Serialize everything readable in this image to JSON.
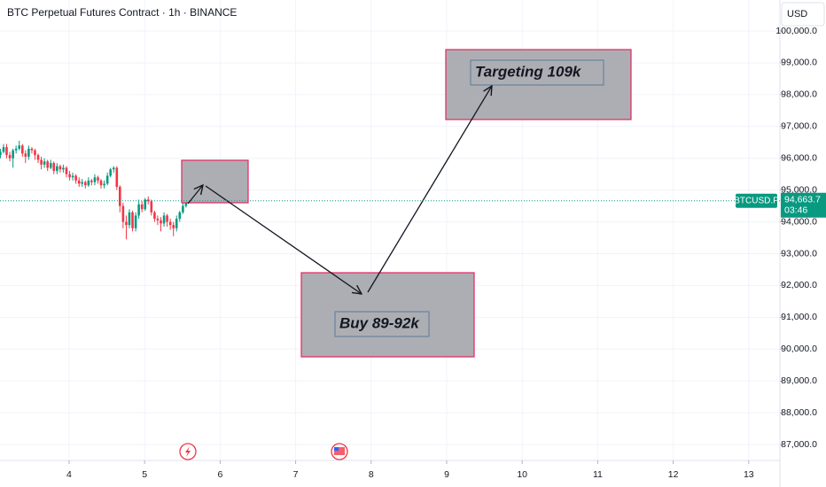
{
  "chart_data": {
    "type": "candlestick",
    "title": "BTC Perpetual Futures Contract · 1h · BINANCE",
    "currency": "USD",
    "x": [
      3.09,
      3.132,
      3.173,
      3.215,
      3.257,
      3.298,
      3.34,
      3.382,
      3.423,
      3.465,
      3.507,
      3.548,
      3.59,
      3.632,
      3.673,
      3.715,
      3.757,
      3.798,
      3.84,
      3.882,
      3.923,
      3.965,
      4.007,
      4.048,
      4.09,
      4.132,
      4.173,
      4.215,
      4.257,
      4.298,
      4.34,
      4.382,
      4.423,
      4.465,
      4.507,
      4.548,
      4.59,
      4.632,
      4.673,
      4.715,
      4.757,
      4.798,
      4.84,
      4.882,
      4.923,
      4.965,
      5.007,
      5.048,
      5.09,
      5.132,
      5.173,
      5.215,
      5.257,
      5.298,
      5.34,
      5.382,
      5.423,
      5.465,
      5.507,
      5.548
    ],
    "open": [
      96100,
      96200,
      96350,
      96100,
      96000,
      96250,
      96300,
      96400,
      96150,
      96050,
      96300,
      96250,
      96100,
      95950,
      95800,
      95900,
      95700,
      95850,
      95600,
      95750,
      95650,
      95700,
      95500,
      95400,
      95450,
      95300,
      95200,
      95250,
      95150,
      95300,
      95250,
      95400,
      95300,
      95150,
      95200,
      95450,
      95650,
      95700,
      95100,
      94500,
      94000,
      93900,
      94300,
      93800,
      94200,
      94550,
      94400,
      94700,
      94650,
      94300,
      94100,
      94050,
      93950,
      94200,
      94000,
      93900,
      93800,
      94100,
      94300,
      94500
    ],
    "high": [
      96300,
      96450,
      96450,
      96200,
      96300,
      96400,
      96550,
      96450,
      96250,
      96400,
      96350,
      96300,
      96150,
      96050,
      96000,
      95950,
      95950,
      95900,
      95850,
      95800,
      95800,
      95750,
      95600,
      95550,
      95500,
      95400,
      95350,
      95300,
      95400,
      95350,
      95500,
      95450,
      95350,
      95300,
      95550,
      95700,
      95750,
      95750,
      95150,
      94600,
      94200,
      94400,
      94350,
      94300,
      94700,
      94650,
      94750,
      94800,
      94700,
      94350,
      94200,
      94150,
      94300,
      94250,
      94100,
      94000,
      94200,
      94350,
      94600,
      94700
    ],
    "low": [
      96000,
      96150,
      96000,
      95900,
      95700,
      96150,
      96250,
      96050,
      95850,
      95950,
      96150,
      95950,
      95850,
      95650,
      95700,
      95600,
      95650,
      95500,
      95500,
      95550,
      95550,
      95400,
      95300,
      95300,
      95200,
      95100,
      95100,
      95050,
      95100,
      95150,
      95150,
      95200,
      95050,
      95050,
      95150,
      95400,
      95550,
      95000,
      94300,
      93800,
      93450,
      93800,
      93700,
      93700,
      94100,
      94300,
      94350,
      94550,
      94200,
      94000,
      93900,
      93700,
      93850,
      93850,
      93750,
      93550,
      93700,
      94000,
      94250,
      94450
    ],
    "close": [
      96200,
      96350,
      96100,
      96000,
      96250,
      96300,
      96400,
      96150,
      96050,
      96300,
      96250,
      96100,
      95950,
      95800,
      95900,
      95700,
      95850,
      95600,
      95750,
      95650,
      95700,
      95500,
      95400,
      95450,
      95300,
      95200,
      95250,
      95150,
      95300,
      95250,
      95400,
      95300,
      95150,
      95200,
      95450,
      95650,
      95700,
      95100,
      94500,
      94000,
      93900,
      94300,
      93800,
      94200,
      94550,
      94400,
      94700,
      94650,
      94300,
      94100,
      94050,
      93950,
      94200,
      94000,
      93900,
      93800,
      94100,
      94300,
      94500,
      94650
    ],
    "up_color": "#089981",
    "down_color": "#f23645",
    "xlim": [
      3.085,
      13.413
    ],
    "xticks": [
      4,
      5,
      6,
      7,
      8,
      9,
      10,
      11,
      12,
      13
    ],
    "ylim": [
      86500,
      100975
    ],
    "yticks": [
      {
        "value": 87000,
        "label": "87,000.0"
      },
      {
        "value": 88000,
        "label": "88,000.0"
      },
      {
        "value": 89000,
        "label": "89,000.0"
      },
      {
        "value": 90000,
        "label": "90,000.0"
      },
      {
        "value": 91000,
        "label": "91,000.0"
      },
      {
        "value": 92000,
        "label": "92,000.0"
      },
      {
        "value": 93000,
        "label": "93,000.0"
      },
      {
        "value": 94000,
        "label": "94,000.0"
      },
      {
        "value": 95000,
        "label": "95,000.0"
      },
      {
        "value": 96000,
        "label": "96,000.0"
      },
      {
        "value": 97000,
        "label": "97,000.0"
      },
      {
        "value": 98000,
        "label": "98,000.0"
      },
      {
        "value": 99000,
        "label": "99,000.0"
      },
      {
        "value": 100000,
        "label": "100,000.0"
      }
    ],
    "grid": true,
    "symbol": "BTCUSD.P",
    "last_price": {
      "value": 94663.7,
      "label": "94,663.7"
    },
    "countdown": "03:46",
    "annotations": [
      "Targeting 109k",
      "Buy 89-92k"
    ]
  }
}
